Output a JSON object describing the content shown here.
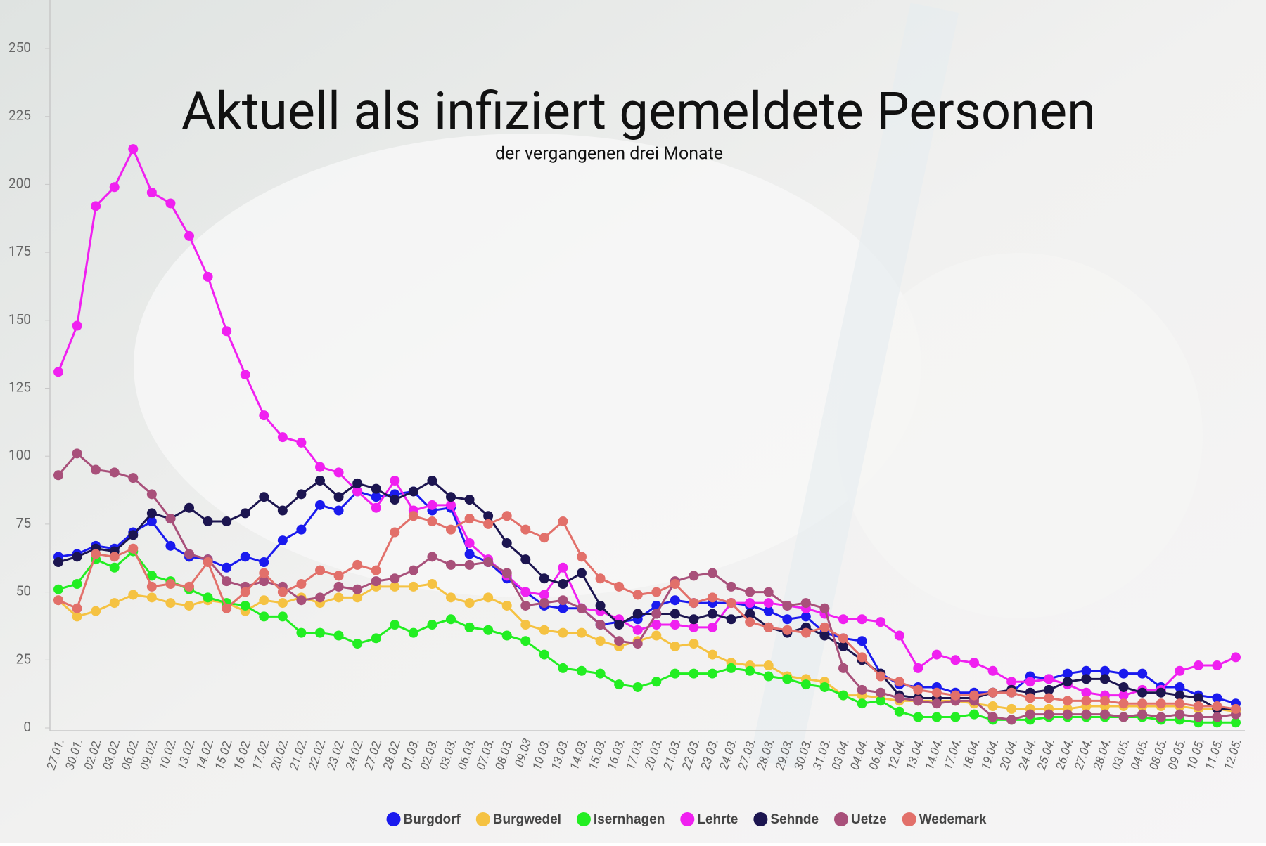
{
  "chart_data": {
    "type": "line",
    "title": "Aktuell als infiziert gemeldete Personen",
    "subtitle": "der vergangenen drei Monate",
    "categories": [
      "27.01.",
      "30.01.",
      "02.02.",
      "03.02.",
      "06.02.",
      "09.02.",
      "10.02.",
      "13.02.",
      "14.02.",
      "15.02.",
      "16.02.",
      "17.02.",
      "20.02.",
      "21.02.",
      "22.02.",
      "23.02.",
      "24.02.",
      "27.02.",
      "28.02.",
      "01.03.",
      "02.03.",
      "03.03.",
      "06.03.",
      "07.03.",
      "08.03.",
      "09.03",
      "10.03.",
      "13.03.",
      "14.03.",
      "15.03.",
      "16.03.",
      "17.03.",
      "20.03.",
      "21.03.",
      "22.03.",
      "23.03.",
      "24.03.",
      "27.03.",
      "28.03.",
      "29.03.",
      "30.03.",
      "31.03.",
      "03.04.",
      "04.04.",
      "06.04.",
      "12.04.",
      "13.04.",
      "14.04.",
      "17.04.",
      "18.04.",
      "19.04.",
      "20.04.",
      "24.04.",
      "25.04.",
      "26.04.",
      "27.04.",
      "28.04.",
      "03.05.",
      "04.05.",
      "08.05.",
      "09.05.",
      "10.05.",
      "11.05.",
      "12.05."
    ],
    "series": [
      {
        "name": "Burgdorf",
        "color": "#1a1aee",
        "values": [
          63,
          64,
          67,
          66,
          72,
          76,
          67,
          63,
          62,
          59,
          63,
          61,
          69,
          73,
          82,
          80,
          87,
          85,
          86,
          87,
          80,
          81,
          64,
          61,
          55,
          50,
          45,
          44,
          44,
          38,
          39,
          40,
          45,
          47,
          46,
          46,
          46,
          45,
          43,
          40,
          41,
          35,
          33,
          32,
          20,
          16,
          15,
          15,
          13,
          13,
          13,
          13,
          19,
          18,
          20,
          21,
          21,
          20,
          20,
          15,
          15,
          12,
          11,
          9
        ]
      },
      {
        "name": "Burgwedel",
        "color": "#f5c242",
        "values": [
          47,
          41,
          43,
          46,
          49,
          48,
          46,
          45,
          47,
          46,
          43,
          47,
          46,
          48,
          46,
          48,
          48,
          52,
          52,
          52,
          53,
          48,
          46,
          48,
          45,
          38,
          36,
          35,
          35,
          32,
          30,
          32,
          34,
          30,
          31,
          27,
          24,
          23,
          23,
          19,
          18,
          17,
          12,
          12,
          11,
          10,
          10,
          10,
          10,
          9,
          8,
          7,
          7,
          7,
          7,
          8,
          8,
          8,
          8,
          8,
          8,
          7,
          7,
          6
        ]
      },
      {
        "name": "Isernhagen",
        "color": "#22ee22",
        "values": [
          51,
          53,
          62,
          59,
          65,
          56,
          54,
          51,
          48,
          46,
          45,
          41,
          41,
          35,
          35,
          34,
          31,
          33,
          38,
          35,
          38,
          40,
          37,
          36,
          34,
          32,
          27,
          22,
          21,
          20,
          16,
          15,
          17,
          20,
          20,
          20,
          22,
          21,
          19,
          18,
          16,
          15,
          12,
          9,
          10,
          6,
          4,
          4,
          4,
          5,
          3,
          3,
          3,
          4,
          4,
          4,
          4,
          4,
          4,
          3,
          3,
          2,
          2,
          2
        ]
      },
      {
        "name": "Lehrte",
        "color": "#f020f0",
        "values": [
          131,
          148,
          192,
          199,
          213,
          197,
          193,
          181,
          166,
          146,
          130,
          115,
          107,
          105,
          96,
          94,
          87,
          81,
          91,
          80,
          82,
          82,
          68,
          62,
          56,
          50,
          49,
          59,
          44,
          43,
          40,
          36,
          38,
          38,
          37,
          37,
          46,
          46,
          46,
          45,
          44,
          42,
          40,
          40,
          39,
          34,
          22,
          27,
          25,
          24,
          21,
          17,
          17,
          18,
          16,
          13,
          12,
          12,
          14,
          14,
          21,
          23,
          23,
          26
        ]
      },
      {
        "name": "Sehnde",
        "color": "#1c1550",
        "values": [
          61,
          63,
          66,
          65,
          71,
          79,
          77,
          81,
          76,
          76,
          79,
          85,
          80,
          86,
          91,
          85,
          90,
          88,
          84,
          87,
          91,
          85,
          84,
          78,
          68,
          62,
          55,
          53,
          57,
          45,
          38,
          42,
          42,
          42,
          40,
          42,
          40,
          42,
          37,
          35,
          37,
          34,
          30,
          25,
          20,
          12,
          11,
          11,
          11,
          11,
          13,
          14,
          13,
          14,
          17,
          18,
          18,
          15,
          13,
          13,
          12,
          11,
          7,
          7
        ]
      },
      {
        "name": "Uetze",
        "color": "#a8507a",
        "values": [
          93,
          101,
          95,
          94,
          92,
          86,
          77,
          64,
          62,
          54,
          52,
          54,
          52,
          47,
          48,
          52,
          51,
          54,
          55,
          58,
          63,
          60,
          60,
          61,
          57,
          45,
          46,
          47,
          44,
          38,
          32,
          31,
          42,
          54,
          56,
          57,
          52,
          50,
          50,
          45,
          46,
          44,
          22,
          14,
          13,
          11,
          10,
          9,
          10,
          10,
          4,
          3,
          5,
          5,
          5,
          5,
          5,
          4,
          5,
          4,
          5,
          4,
          4,
          5
        ]
      },
      {
        "name": "Wedemark",
        "color": "#e2706a",
        "values": [
          47,
          44,
          64,
          63,
          66,
          52,
          53,
          52,
          61,
          44,
          50,
          57,
          50,
          53,
          58,
          56,
          60,
          58,
          72,
          78,
          76,
          73,
          77,
          75,
          78,
          73,
          70,
          76,
          63,
          55,
          52,
          49,
          50,
          53,
          46,
          48,
          46,
          39,
          37,
          36,
          35,
          37,
          33,
          26,
          19,
          17,
          14,
          13,
          12,
          12,
          13,
          13,
          11,
          11,
          10,
          10,
          10,
          9,
          9,
          9,
          9,
          8,
          8,
          7
        ]
      }
    ],
    "ylim": [
      0,
      250
    ],
    "yticks": [
      0,
      25,
      50,
      75,
      100,
      125,
      150,
      175,
      200,
      225,
      250
    ]
  }
}
